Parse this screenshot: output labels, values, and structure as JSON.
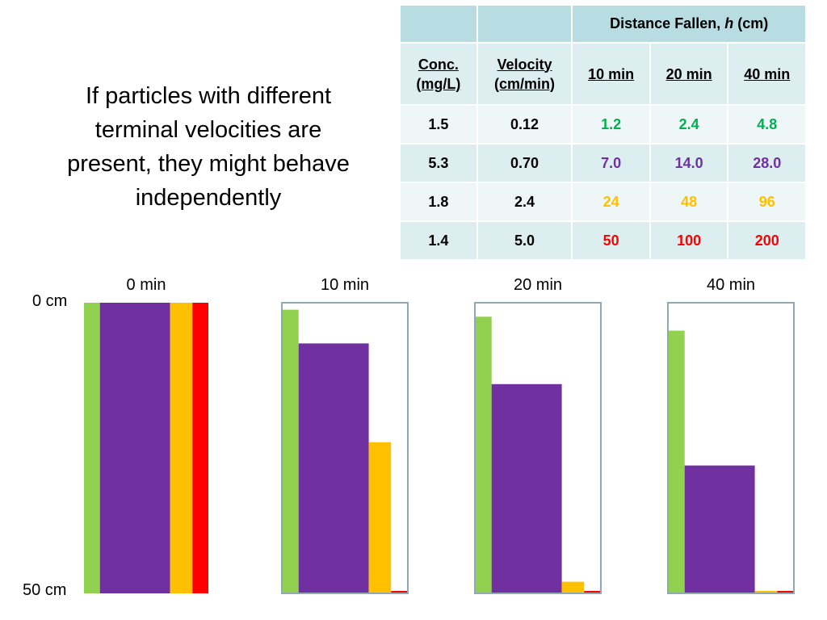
{
  "heading": {
    "lines": [
      "If particles with different",
      "terminal velocities are",
      "present, they might behave",
      "independently"
    ]
  },
  "colors": {
    "green": "#92d050",
    "purple": "#7030a0",
    "orange": "#ffc000",
    "red": "#ff0000",
    "green_text": "#00b050",
    "column_border": "#8ea9b3"
  },
  "table": {
    "group_header_prefix": "Distance Fallen, ",
    "group_header_var": "h",
    "group_header_unit": " (cm)",
    "col_headers": {
      "conc": [
        "Conc.",
        "(mg/L)"
      ],
      "velocity": [
        "Velocity",
        "(cm/min)"
      ],
      "t10": "10 min",
      "t20": "20 min",
      "t40": "40 min"
    },
    "rows": [
      {
        "conc": "1.5",
        "velocity": "0.12",
        "d10": "1.2",
        "d20": "2.4",
        "d40": "4.8",
        "color": "green"
      },
      {
        "conc": "5.3",
        "velocity": "0.70",
        "d10": "7.0",
        "d20": "14.0",
        "d40": "28.0",
        "color": "purple"
      },
      {
        "conc": "1.8",
        "velocity": "2.4",
        "d10": "24",
        "d20": "48",
        "d40": "96",
        "color": "orange"
      },
      {
        "conc": "1.4",
        "velocity": "5.0",
        "d10": "50",
        "d20": "100",
        "d40": "200",
        "color": "red"
      }
    ]
  },
  "columns": {
    "depth_cm": 50,
    "top_label": "0 cm",
    "bottom_label": "50 cm",
    "times": [
      {
        "label": "0 min",
        "bordered": false,
        "tops_cm": [
          0,
          0,
          0,
          0
        ]
      },
      {
        "label": "10 min",
        "bordered": true,
        "tops_cm": [
          1.2,
          7.0,
          24,
          50
        ]
      },
      {
        "label": "20 min",
        "bordered": true,
        "tops_cm": [
          2.4,
          14.0,
          48,
          100
        ]
      },
      {
        "label": "40 min",
        "bordered": true,
        "tops_cm": [
          4.8,
          28.0,
          96,
          200
        ]
      }
    ],
    "band_colors": [
      "green",
      "purple",
      "orange",
      "red"
    ],
    "band_width_weights": [
      1,
      4.4,
      1.4,
      1
    ]
  }
}
